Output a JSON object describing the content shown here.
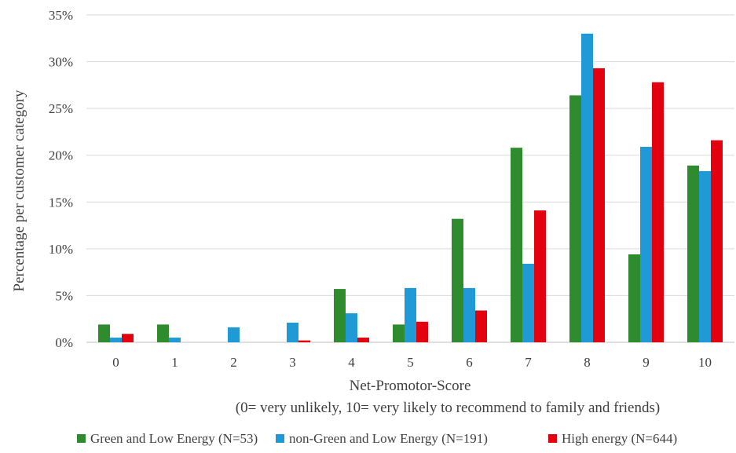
{
  "chart_data": {
    "type": "bar",
    "xlabel": "Net-Promotor-Score",
    "xlabel_sub": "(0= very unlikely, 10= very likely to recommend to family and friends)",
    "ylabel": "Percentage per customer category",
    "categories": [
      "0",
      "1",
      "2",
      "3",
      "4",
      "5",
      "6",
      "7",
      "8",
      "9",
      "10"
    ],
    "y_ticks": [
      "0%",
      "5%",
      "10%",
      "15%",
      "20%",
      "25%",
      "30%",
      "35%"
    ],
    "ylim": [
      0,
      35
    ],
    "grid": true,
    "legend_position": "bottom",
    "series": [
      {
        "name": "Green and Low Energy (N=53)",
        "color": "#2e8b2e",
        "values": [
          1.9,
          1.9,
          0,
          0,
          5.7,
          1.9,
          13.2,
          20.8,
          26.4,
          9.4,
          18.9
        ]
      },
      {
        "name": "non-Green and Low Energy (N=191)",
        "color": "#1f9ad6",
        "values": [
          0.5,
          0.5,
          1.6,
          2.1,
          3.1,
          5.8,
          5.8,
          8.4,
          33.0,
          20.9,
          18.3
        ]
      },
      {
        "name": "High energy (N=644)",
        "color": "#e3000f",
        "values": [
          0.9,
          0,
          0,
          0.2,
          0.5,
          2.2,
          3.4,
          14.1,
          29.3,
          27.8,
          21.6
        ]
      }
    ]
  }
}
